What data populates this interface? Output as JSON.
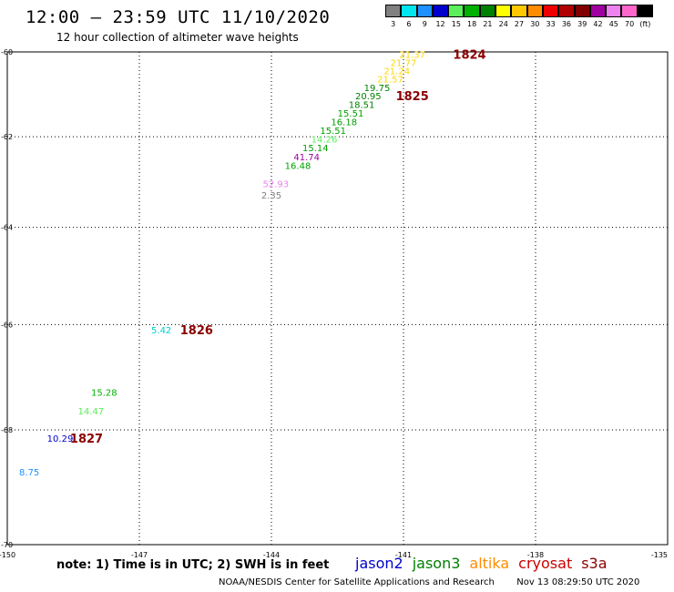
{
  "header": {
    "title": "12:00 – 23:59 UTC 11/10/2020",
    "subtitle": "12 hour collection of altimeter wave heights"
  },
  "colorbar": {
    "unit": "(ft)",
    "bins": [
      {
        "label": "3",
        "color": "#808080"
      },
      {
        "label": "6",
        "color": "#00e5ee"
      },
      {
        "label": "9",
        "color": "#1e90ff"
      },
      {
        "label": "12",
        "color": "#0000cd"
      },
      {
        "label": "15",
        "color": "#5cee5c"
      },
      {
        "label": "18",
        "color": "#00b000"
      },
      {
        "label": "21",
        "color": "#008000"
      },
      {
        "label": "24",
        "color": "#ffff00"
      },
      {
        "label": "27",
        "color": "#ffc800"
      },
      {
        "label": "30",
        "color": "#ff8c00"
      },
      {
        "label": "33",
        "color": "#ee0000"
      },
      {
        "label": "36",
        "color": "#b00000"
      },
      {
        "label": "39",
        "color": "#800000"
      },
      {
        "label": "42",
        "color": "#a000a0"
      },
      {
        "label": "45",
        "color": "#ee82ee"
      },
      {
        "label": "70",
        "color": "#ff66cc"
      },
      {
        "label": "",
        "color": "#000000"
      }
    ]
  },
  "axes": {
    "lat_ticks": [
      "-60",
      "-62",
      "-64",
      "-66",
      "-68",
      "-70"
    ],
    "lon_ticks": [
      "-150",
      "-147",
      "-144",
      "-141",
      "-138",
      "-135"
    ],
    "lat_range": [
      -70,
      -60
    ],
    "lon_range": [
      -150,
      -135
    ],
    "grid": "dotted"
  },
  "observations": [
    {
      "value": "21.37",
      "lat": -60.05,
      "lon": -140.8,
      "color": "#ffd700"
    },
    {
      "value": "21.77",
      "lat": -60.25,
      "lon": -141.0,
      "color": "#ffd700"
    },
    {
      "value": "21.24",
      "lat": -60.45,
      "lon": -141.15,
      "color": "#ffd700"
    },
    {
      "value": "21.57",
      "lat": -60.65,
      "lon": -141.3,
      "color": "#ffd700"
    },
    {
      "value": "19.75",
      "lat": -60.85,
      "lon": -141.6,
      "color": "#008000"
    },
    {
      "value": "20.95",
      "lat": -61.05,
      "lon": -141.8,
      "color": "#008000"
    },
    {
      "value": "18.51",
      "lat": -61.25,
      "lon": -141.95,
      "color": "#008000"
    },
    {
      "value": "15.51",
      "lat": -61.45,
      "lon": -142.2,
      "color": "#00a000"
    },
    {
      "value": "16.18",
      "lat": -61.65,
      "lon": -142.35,
      "color": "#00a000"
    },
    {
      "value": "15.51",
      "lat": -61.85,
      "lon": -142.6,
      "color": "#00a000"
    },
    {
      "value": "14.26",
      "lat": -62.05,
      "lon": -142.8,
      "color": "#5cee5c"
    },
    {
      "value": "15.14",
      "lat": -62.25,
      "lon": -143.0,
      "color": "#00a000"
    },
    {
      "value": "41.74",
      "lat": -62.45,
      "lon": -143.2,
      "color": "#a000a0"
    },
    {
      "value": "16.48",
      "lat": -62.65,
      "lon": -143.4,
      "color": "#00a000"
    },
    {
      "value": "52.93",
      "lat": -63.05,
      "lon": -143.9,
      "color": "#ee82ee"
    },
    {
      "value": "2.35",
      "lat": -63.3,
      "lon": -144.0,
      "color": "#808080"
    },
    {
      "value": "5.42",
      "lat": -66.1,
      "lon": -146.5,
      "color": "#00ced1"
    },
    {
      "value": "15.28",
      "lat": -67.3,
      "lon": -147.8,
      "color": "#00b000"
    },
    {
      "value": "14.47",
      "lat": -67.65,
      "lon": -148.1,
      "color": "#5cee5c"
    },
    {
      "value": "10.29",
      "lat": -68.15,
      "lon": -148.8,
      "color": "#0000cd"
    },
    {
      "value": "8.75",
      "lat": -68.75,
      "lon": -149.5,
      "color": "#1e90ff"
    }
  ],
  "track_labels": [
    {
      "text": "1824",
      "lat": -60.05,
      "lon": -139.5
    },
    {
      "text": "1825",
      "lat": -61.05,
      "lon": -140.8
    },
    {
      "text": "1826",
      "lat": -66.1,
      "lon": -145.7
    },
    {
      "text": "1827",
      "lat": -68.15,
      "lon": -148.2
    }
  ],
  "note": "note: 1) Time is in UTC; 2) SWH is in feet",
  "legend": [
    {
      "label": "jason2",
      "color": "#0000cd"
    },
    {
      "label": "jason3",
      "color": "#008000"
    },
    {
      "label": "altika",
      "color": "#ff8c00"
    },
    {
      "label": "cryosat",
      "color": "#cc0000"
    },
    {
      "label": "s3a",
      "color": "#8b0000"
    }
  ],
  "footer": {
    "agency": "NOAA/NESDIS Center for Satellite Applications and Research",
    "timestamp": "Nov 13 08:29:50 UTC 2020"
  }
}
